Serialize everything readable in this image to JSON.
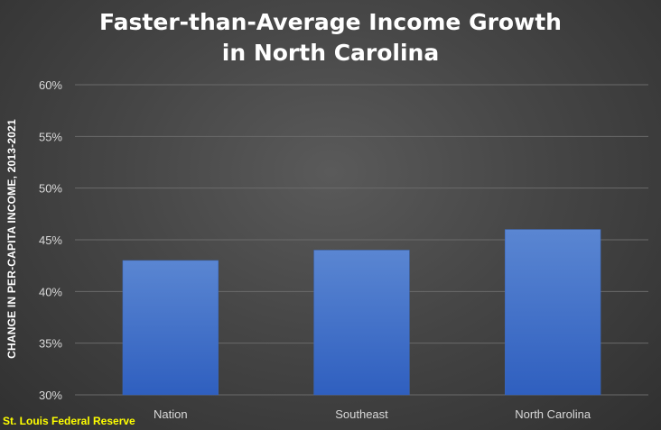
{
  "chart_data": {
    "type": "bar",
    "title": "Faster-than-Average  Income Growth",
    "subtitle": "in North Carolina",
    "ylabel": "CHANGE IN PER-CAPITA INCOME, 2013-2021",
    "xlabel": "",
    "categories": [
      "Nation",
      "Southeast",
      "North Carolina"
    ],
    "values": [
      43,
      44,
      46
    ],
    "unit": "%",
    "ylim": [
      30,
      60
    ],
    "yticks": [
      30,
      35,
      40,
      45,
      50,
      55,
      60
    ],
    "ytick_labels": [
      "30%",
      "35%",
      "40%",
      "45%",
      "50%",
      "55%",
      "60%"
    ],
    "grid": true,
    "bar_color": "#4472c4"
  },
  "source_note": "St. Louis Federal Reserve",
  "colors": {
    "title": "#ffffff",
    "source": "#ffff00",
    "grid": "#6a6a6a"
  }
}
